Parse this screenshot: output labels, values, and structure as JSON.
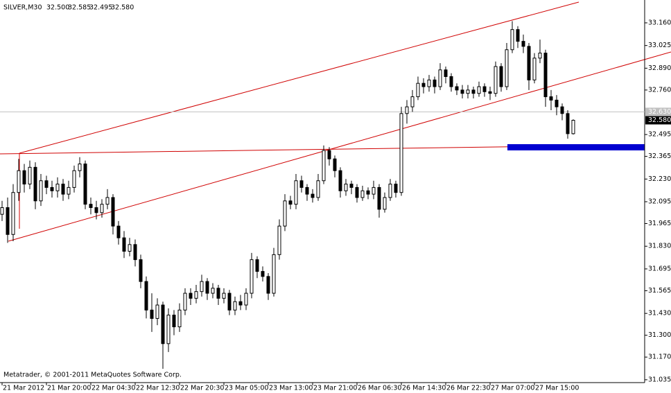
{
  "chart_data": {
    "type": "candlestick",
    "title": "SILVER,M30",
    "header_values": [
      "32.500",
      "32.585",
      "32.495",
      "32.580"
    ],
    "footer": "Metatrader, © 2001-2011 MetaQuotes Software Corp.",
    "bull_color": "#ffffff",
    "bear_color": "#000000",
    "wick_color": "#000000",
    "ylim": [
      31.018,
      33.296
    ],
    "yticks": [
      {
        "value": 33.16,
        "label": "33.160"
      },
      {
        "value": 33.025,
        "label": "33.025"
      },
      {
        "value": 32.89,
        "label": "32.890"
      },
      {
        "value": 32.76,
        "label": "32.760"
      },
      {
        "value": 32.495,
        "label": "32.495"
      },
      {
        "value": 32.365,
        "label": "32.365"
      },
      {
        "value": 32.23,
        "label": "32.230"
      },
      {
        "value": 32.095,
        "label": "32.095"
      },
      {
        "value": 31.965,
        "label": "31.965"
      },
      {
        "value": 31.83,
        "label": "31.830"
      },
      {
        "value": 31.695,
        "label": "31.695"
      },
      {
        "value": 31.565,
        "label": "31.565"
      },
      {
        "value": 31.43,
        "label": "31.430"
      },
      {
        "value": 31.3,
        "label": "31.300"
      },
      {
        "value": 31.17,
        "label": "31.170"
      },
      {
        "value": 31.035,
        "label": "31.035"
      }
    ],
    "price_markers": [
      {
        "value": 32.63,
        "label": "32.630",
        "color": "#c0c0c0"
      },
      {
        "value": 32.58,
        "label": "32.580",
        "color": "#000000"
      }
    ],
    "x_labels": [
      "21 Mar 2012",
      "21 Mar 20:00",
      "22 Mar 04:30",
      "22 Mar 12:30",
      "22 Mar 20:30",
      "23 Mar 05:00",
      "23 Mar 13:00",
      "23 Mar 21:00",
      "26 Mar 06:30",
      "26 Mar 14:30",
      "26 Mar 22:30",
      "27 Mar 07:00",
      "27 Mar 15:00"
    ],
    "candles": [
      [
        32.02,
        32.1,
        31.98,
        32.06
      ],
      [
        32.06,
        32.12,
        31.85,
        31.9
      ],
      [
        31.9,
        32.2,
        31.86,
        32.15
      ],
      [
        32.15,
        32.35,
        32.1,
        32.28
      ],
      [
        32.28,
        32.32,
        32.15,
        32.2
      ],
      [
        32.2,
        32.34,
        32.17,
        32.3
      ],
      [
        32.3,
        32.33,
        32.05,
        32.1
      ],
      [
        32.1,
        32.26,
        32.07,
        32.22
      ],
      [
        32.22,
        32.25,
        32.14,
        32.18
      ],
      [
        32.18,
        32.22,
        32.12,
        32.16
      ],
      [
        32.16,
        32.24,
        32.12,
        32.2
      ],
      [
        32.2,
        32.23,
        32.1,
        32.14
      ],
      [
        32.14,
        32.22,
        32.11,
        32.18
      ],
      [
        32.18,
        32.31,
        32.15,
        32.28
      ],
      [
        32.28,
        32.36,
        32.24,
        32.32
      ],
      [
        32.32,
        32.34,
        32.05,
        32.08
      ],
      [
        32.08,
        32.12,
        32.02,
        32.06
      ],
      [
        32.06,
        32.1,
        31.99,
        32.03
      ],
      [
        32.03,
        32.11,
        32.0,
        32.08
      ],
      [
        32.08,
        32.17,
        32.05,
        32.12
      ],
      [
        32.12,
        32.14,
        31.9,
        31.95
      ],
      [
        31.95,
        31.98,
        31.84,
        31.88
      ],
      [
        31.88,
        31.92,
        31.76,
        31.8
      ],
      [
        31.8,
        31.88,
        31.77,
        31.84
      ],
      [
        31.84,
        31.87,
        31.71,
        31.75
      ],
      [
        31.75,
        31.78,
        31.58,
        31.62
      ],
      [
        31.62,
        31.65,
        31.4,
        31.45
      ],
      [
        31.45,
        31.55,
        31.32,
        31.4
      ],
      [
        31.4,
        31.52,
        31.36,
        31.48
      ],
      [
        31.48,
        31.5,
        31.1,
        31.25
      ],
      [
        31.25,
        31.46,
        31.2,
        31.42
      ],
      [
        31.42,
        31.45,
        31.3,
        31.35
      ],
      [
        31.35,
        31.49,
        31.32,
        31.45
      ],
      [
        31.45,
        31.58,
        31.42,
        31.55
      ],
      [
        31.55,
        31.58,
        31.48,
        31.52
      ],
      [
        31.52,
        31.6,
        31.49,
        31.56
      ],
      [
        31.56,
        31.66,
        31.53,
        31.62
      ],
      [
        31.62,
        31.64,
        31.51,
        31.55
      ],
      [
        31.55,
        31.61,
        31.52,
        31.58
      ],
      [
        31.58,
        31.6,
        31.48,
        31.52
      ],
      [
        31.52,
        31.58,
        31.49,
        31.55
      ],
      [
        31.55,
        31.57,
        31.42,
        31.45
      ],
      [
        31.45,
        31.53,
        31.42,
        31.5
      ],
      [
        31.5,
        31.54,
        31.45,
        31.48
      ],
      [
        31.48,
        31.58,
        31.45,
        31.55
      ],
      [
        31.55,
        31.79,
        31.52,
        31.75
      ],
      [
        31.75,
        31.77,
        31.64,
        31.68
      ],
      [
        31.68,
        31.71,
        31.62,
        31.65
      ],
      [
        31.65,
        31.67,
        31.51,
        31.55
      ],
      [
        31.55,
        31.82,
        31.53,
        31.78
      ],
      [
        31.78,
        31.99,
        31.75,
        31.95
      ],
      [
        31.95,
        32.14,
        31.92,
        32.1
      ],
      [
        32.1,
        32.13,
        32.05,
        32.08
      ],
      [
        32.08,
        32.26,
        32.05,
        32.22
      ],
      [
        32.22,
        32.25,
        32.15,
        32.18
      ],
      [
        32.18,
        32.2,
        32.1,
        32.14
      ],
      [
        32.14,
        32.17,
        32.09,
        32.12
      ],
      [
        32.12,
        32.26,
        32.1,
        32.22
      ],
      [
        32.22,
        32.43,
        32.2,
        32.4
      ],
      [
        32.4,
        32.42,
        32.31,
        32.35
      ],
      [
        32.35,
        32.37,
        32.24,
        32.28
      ],
      [
        32.28,
        32.3,
        32.12,
        32.16
      ],
      [
        32.16,
        32.23,
        32.13,
        32.2
      ],
      [
        32.2,
        32.22,
        32.14,
        32.18
      ],
      [
        32.18,
        32.2,
        32.09,
        32.12
      ],
      [
        32.12,
        32.19,
        32.1,
        32.16
      ],
      [
        32.16,
        32.18,
        32.11,
        32.14
      ],
      [
        32.14,
        32.22,
        32.11,
        32.18
      ],
      [
        32.18,
        32.2,
        32.0,
        32.05
      ],
      [
        32.05,
        32.15,
        32.03,
        32.12
      ],
      [
        32.12,
        32.23,
        32.1,
        32.2
      ],
      [
        32.2,
        32.22,
        32.12,
        32.15
      ],
      [
        32.15,
        32.66,
        32.13,
        32.62
      ],
      [
        32.62,
        32.7,
        32.56,
        32.66
      ],
      [
        32.66,
        32.76,
        32.63,
        32.72
      ],
      [
        32.72,
        32.84,
        32.7,
        32.8
      ],
      [
        32.8,
        32.83,
        32.74,
        32.78
      ],
      [
        32.78,
        32.85,
        32.75,
        32.82
      ],
      [
        32.82,
        32.84,
        32.74,
        32.78
      ],
      [
        32.78,
        32.92,
        32.76,
        32.88
      ],
      [
        32.88,
        32.9,
        32.8,
        32.84
      ],
      [
        32.84,
        32.86,
        32.75,
        32.78
      ],
      [
        32.78,
        32.8,
        32.73,
        32.76
      ],
      [
        32.76,
        32.79,
        32.71,
        32.74
      ],
      [
        32.74,
        32.79,
        32.71,
        32.76
      ],
      [
        32.76,
        32.78,
        32.71,
        32.74
      ],
      [
        32.74,
        32.81,
        32.72,
        32.78
      ],
      [
        32.78,
        32.8,
        32.72,
        32.75
      ],
      [
        32.75,
        32.78,
        32.7,
        32.74
      ],
      [
        32.74,
        32.93,
        32.72,
        32.9
      ],
      [
        32.9,
        32.92,
        32.75,
        32.78
      ],
      [
        32.78,
        33.04,
        32.76,
        33.0
      ],
      [
        33.0,
        33.17,
        32.98,
        33.12
      ],
      [
        33.12,
        33.14,
        33.01,
        33.05
      ],
      [
        33.05,
        33.09,
        32.98,
        33.02
      ],
      [
        33.02,
        33.04,
        32.76,
        32.82
      ],
      [
        32.82,
        32.98,
        32.8,
        32.95
      ],
      [
        32.95,
        33.06,
        32.92,
        32.98
      ],
      [
        32.98,
        33.0,
        32.66,
        32.72
      ],
      [
        32.72,
        32.76,
        32.64,
        32.7
      ],
      [
        32.7,
        32.73,
        32.61,
        32.66
      ],
      [
        32.66,
        32.68,
        32.58,
        32.62
      ],
      [
        32.62,
        32.64,
        32.47,
        32.5
      ],
      [
        32.5,
        32.585,
        32.495,
        32.58
      ]
    ]
  }
}
